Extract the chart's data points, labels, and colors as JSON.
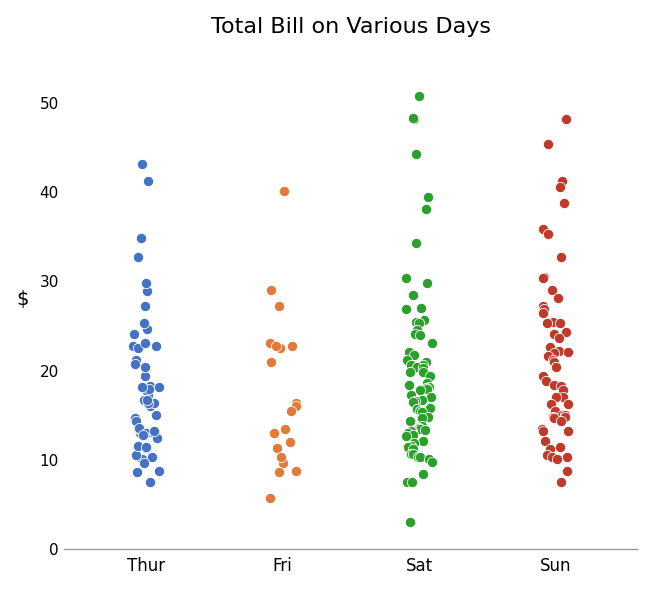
{
  "title": "Total Bill on Various Days",
  "ylabel": "$",
  "days": [
    "Thur",
    "Fri",
    "Sat",
    "Sun"
  ],
  "colors": {
    "Thur": "#4472C4",
    "Fri": "#E07B39",
    "Sat": "#2CA02C",
    "Sun": "#C0392B"
  },
  "ylim": [
    0,
    56
  ],
  "yticks": [
    0,
    10,
    20,
    30,
    40,
    50
  ],
  "jitter": 0.1,
  "marker_size": 55,
  "edgecolor": "white",
  "linewidth": 0.6,
  "background": "white",
  "tips_data": {
    "Thur": [
      27.2,
      22.76,
      17.29,
      19.44,
      16.66,
      10.07,
      32.68,
      15.98,
      34.83,
      13.03,
      18.28,
      24.71,
      21.16,
      28.97,
      22.49,
      16.32,
      22.75,
      11.35,
      15.06,
      20.69,
      17.78,
      24.06,
      25.28,
      14.73,
      10.51,
      17.92,
      13.42,
      14.31,
      13.51,
      18.15,
      23.1,
      11.59,
      7.56,
      11.42,
      13.0,
      12.74,
      13.0,
      16.4,
      8.58,
      10.27,
      8.77,
      29.8,
      12.46,
      43.11,
      41.19,
      9.6,
      20.45,
      13.28,
      16.66,
      18.15
    ],
    "Fri": [
      40.17,
      29.0,
      27.2,
      22.75,
      22.49,
      23.1,
      22.75,
      21.01,
      16.32,
      16.0,
      15.48,
      13.42,
      12.03,
      13.0,
      11.35,
      9.68,
      8.58,
      5.75,
      8.77,
      10.34
    ],
    "Sat": [
      50.81,
      48.17,
      48.27,
      44.3,
      39.42,
      38.07,
      34.3,
      30.4,
      29.85,
      28.44,
      27.05,
      26.86,
      25.71,
      25.42,
      25.28,
      24.59,
      24.06,
      23.95,
      23.1,
      22.12,
      21.7,
      21.16,
      21.01,
      20.65,
      20.65,
      20.45,
      20.29,
      19.82,
      19.81,
      19.44,
      18.64,
      18.43,
      18.15,
      18.09,
      17.92,
      17.81,
      17.31,
      17.07,
      16.66,
      16.58,
      16.43,
      15.77,
      15.69,
      15.48,
      15.36,
      14.78,
      14.73,
      14.31,
      13.81,
      13.51,
      13.42,
      13.37,
      13.28,
      13.27,
      13.0,
      12.76,
      12.69,
      12.16,
      11.87,
      11.59,
      11.38,
      11.24,
      10.65,
      10.65,
      10.34,
      10.27,
      10.07,
      9.78,
      7.56,
      7.51,
      8.35,
      3.07
    ],
    "Sun": [
      48.17,
      45.35,
      41.19,
      40.55,
      38.73,
      35.83,
      35.26,
      32.68,
      30.46,
      30.4,
      29.03,
      28.17,
      27.18,
      26.88,
      26.41,
      25.42,
      25.29,
      25.28,
      24.27,
      24.06,
      23.68,
      22.67,
      22.23,
      22.12,
      22.02,
      21.58,
      21.16,
      21.01,
      20.45,
      20.45,
      19.44,
      18.78,
      18.43,
      18.24,
      17.82,
      17.07,
      16.99,
      16.29,
      16.27,
      15.42,
      15.04,
      15.01,
      14.83,
      14.78,
      14.73,
      14.31,
      13.42,
      13.27,
      13.28,
      12.16,
      11.38,
      11.17,
      10.59,
      10.34,
      10.27,
      10.09,
      8.77,
      7.56
    ]
  }
}
